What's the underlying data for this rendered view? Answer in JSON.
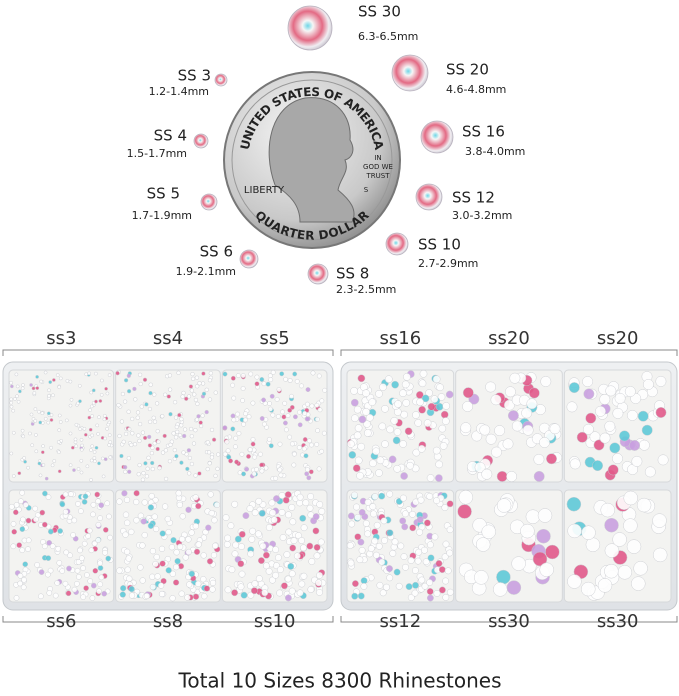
{
  "size_chart": [
    {
      "label": "SS 30",
      "range": "6.3-6.5mm"
    },
    {
      "label": "SS 20",
      "range": "4.6-4.8mm"
    },
    {
      "label": "SS 16",
      "range": "3.8-4.0mm"
    },
    {
      "label": "SS 12",
      "range": "3.0-3.2mm"
    },
    {
      "label": "SS 10",
      "range": "2.7-2.9mm"
    },
    {
      "label": "SS 8",
      "range": "2.3-2.5mm"
    },
    {
      "label": "SS 6",
      "range": "1.9-2.1mm"
    },
    {
      "label": "SS 5",
      "range": "1.7-1.9mm"
    },
    {
      "label": "SS 4",
      "range": "1.5-1.7mm"
    },
    {
      "label": "SS 3",
      "range": "1.2-1.4mm"
    }
  ],
  "coin": {
    "top": "UNITED STATES OF AMERICA",
    "left": "LIBERTY",
    "motto": [
      "IN",
      "GOD WE",
      "TRUST"
    ],
    "mint": "S",
    "bottom": "QUARTER DOLLAR"
  },
  "box_labels": {
    "top": [
      "ss3",
      "ss4",
      "ss5",
      "ss16",
      "ss20",
      "ss20"
    ],
    "bottom": [
      "ss6",
      "ss8",
      "ss10",
      "ss12",
      "ss30",
      "ss30"
    ]
  },
  "footer": "Total 10 Sizes 8300 Rhinestones"
}
